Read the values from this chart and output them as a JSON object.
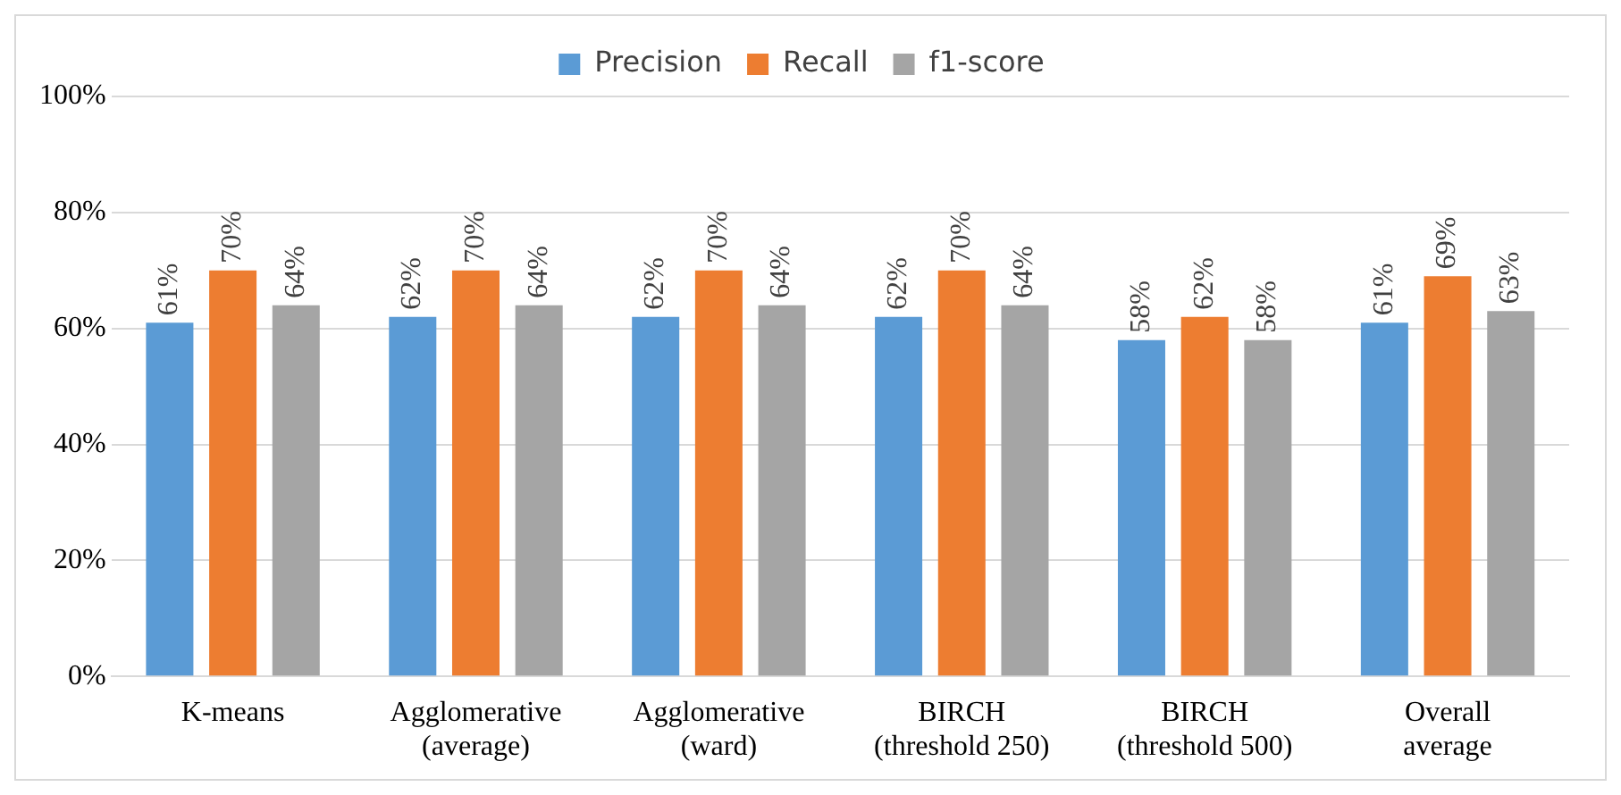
{
  "chart_data": {
    "type": "bar",
    "categories": [
      "K-means",
      "Agglomerative\n(average)",
      "Agglomerative\n(ward)",
      "BIRCH\n(threshold 250)",
      "BIRCH\n(threshold 500)",
      "Overall\naverage"
    ],
    "series": [
      {
        "name": "Precision",
        "color": "#5b9bd5",
        "values": [
          61,
          62,
          62,
          62,
          58,
          61
        ],
        "value_labels": [
          "61%",
          "62%",
          "62%",
          "62%",
          "58%",
          "61%"
        ]
      },
      {
        "name": "Recall",
        "color": "#ed7d31",
        "values": [
          70,
          70,
          70,
          70,
          62,
          69
        ],
        "value_labels": [
          "70%",
          "70%",
          "70%",
          "70%",
          "62%",
          "69%"
        ]
      },
      {
        "name": "f1-score",
        "color": "#a5a5a5",
        "values": [
          64,
          64,
          64,
          64,
          58,
          63
        ],
        "value_labels": [
          "64%",
          "64%",
          "64%",
          "64%",
          "58%",
          "63%"
        ]
      }
    ],
    "ylim": [
      0,
      100
    ],
    "yticks": [
      {
        "value": 0,
        "label": "0%"
      },
      {
        "value": 20,
        "label": "20%"
      },
      {
        "value": 40,
        "label": "40%"
      },
      {
        "value": 60,
        "label": "60%"
      },
      {
        "value": 80,
        "label": "80%"
      },
      {
        "value": 100,
        "label": "100%"
      }
    ],
    "grid": "y",
    "legend": "top"
  }
}
